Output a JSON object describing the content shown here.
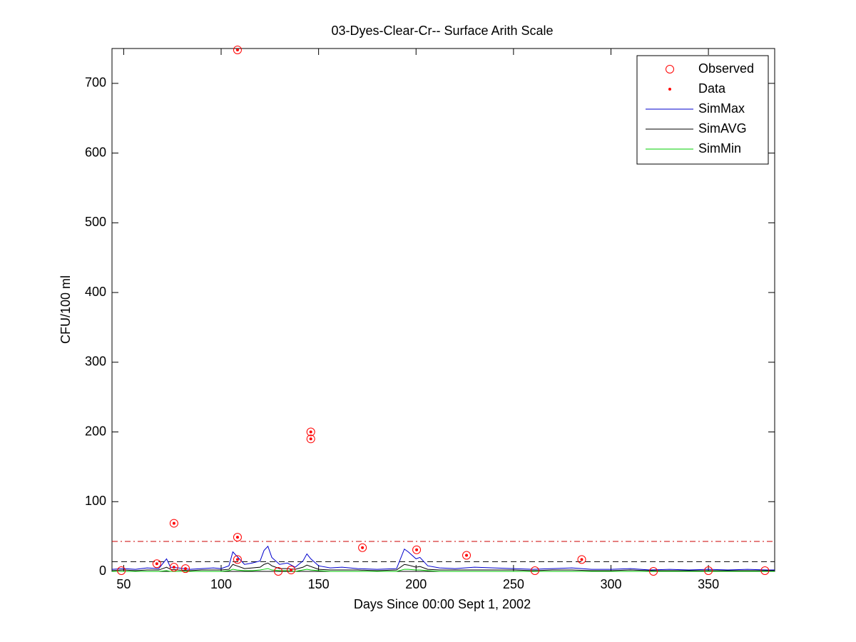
{
  "chart_data": {
    "type": "line",
    "title": "03-Dyes-Clear-Cr-- Surface Arith Scale",
    "xlabel": "Days Since 00:00 Sept 1, 2002",
    "ylabel": "CFU/100 ml",
    "xlim": [
      44,
      384
    ],
    "ylim": [
      0,
      750
    ],
    "xticks": [
      50,
      100,
      150,
      200,
      250,
      300,
      350
    ],
    "yticks": [
      0,
      100,
      200,
      300,
      400,
      500,
      600,
      700
    ],
    "legend": "upper right",
    "series": [
      {
        "name": "Observed",
        "color": "#ff0000",
        "style": "circle",
        "x": [
          48.8,
          67,
          75.8,
          75.8,
          81.7,
          108.4,
          108.4,
          108.4,
          129.3,
          135.9,
          146,
          146,
          172.5,
          200.3,
          225.9,
          261,
          285,
          321.8,
          350,
          379
        ],
        "values": [
          1,
          11,
          69,
          6,
          4,
          748,
          49,
          17,
          0,
          2,
          200,
          190,
          34,
          31,
          23,
          1,
          17,
          0,
          1,
          1
        ]
      },
      {
        "name": "Data",
        "color": "#ff0000",
        "style": "dot",
        "x": [
          67,
          75.8,
          75.8,
          81.7,
          108.4,
          108.4,
          108.4,
          135.9,
          146,
          146,
          172.5,
          200.3,
          225.9,
          285
        ],
        "values": [
          11,
          69,
          6,
          4,
          748,
          49,
          17,
          2,
          200,
          190,
          34,
          31,
          23,
          17
        ]
      },
      {
        "name": "SimMax",
        "color": "#0000cc",
        "style": "line",
        "x": [
          44,
          50,
          56,
          62,
          68,
          72,
          74,
          78,
          84,
          90,
          96,
          100,
          104,
          106,
          108,
          112,
          116,
          120,
          122,
          124,
          126,
          130,
          134,
          138,
          142,
          144,
          146,
          150,
          156,
          162,
          170,
          180,
          190,
          194,
          196,
          200,
          202,
          206,
          212,
          220,
          230,
          240,
          250,
          260,
          270,
          280,
          290,
          300,
          310,
          320,
          330,
          340,
          350,
          360,
          370,
          380,
          384
        ],
        "values": [
          3,
          4,
          3,
          5,
          4,
          18,
          6,
          5,
          3,
          4,
          5,
          4,
          8,
          28,
          22,
          10,
          12,
          15,
          30,
          36,
          20,
          10,
          12,
          6,
          15,
          25,
          18,
          8,
          5,
          6,
          4,
          3,
          4,
          32,
          28,
          18,
          20,
          8,
          5,
          4,
          6,
          5,
          4,
          3,
          4,
          5,
          3,
          3,
          4,
          2,
          3,
          2,
          3,
          2,
          3,
          2,
          2
        ]
      },
      {
        "name": "SimAVG",
        "color": "#000000",
        "style": "line",
        "x": [
          44,
          50,
          56,
          62,
          68,
          72,
          74,
          78,
          84,
          90,
          96,
          100,
          104,
          106,
          108,
          112,
          116,
          120,
          122,
          124,
          126,
          130,
          134,
          138,
          142,
          144,
          146,
          150,
          156,
          162,
          170,
          180,
          190,
          194,
          196,
          200,
          202,
          206,
          212,
          220,
          230,
          240,
          250,
          260,
          270,
          280,
          290,
          300,
          310,
          320,
          330,
          340,
          350,
          360,
          370,
          380,
          384
        ],
        "values": [
          1,
          2,
          1,
          2,
          2,
          6,
          3,
          2,
          1,
          2,
          2,
          2,
          3,
          10,
          8,
          4,
          5,
          6,
          10,
          12,
          8,
          4,
          4,
          3,
          6,
          9,
          7,
          3,
          2,
          2,
          2,
          1,
          2,
          10,
          9,
          6,
          7,
          3,
          2,
          2,
          2,
          2,
          2,
          1,
          2,
          2,
          1,
          1,
          2,
          1,
          1,
          1,
          1,
          1,
          1,
          1,
          1
        ]
      },
      {
        "name": "SimMin",
        "color": "#00cc00",
        "style": "line",
        "x": [
          44,
          50,
          56,
          62,
          68,
          72,
          74,
          78,
          84,
          90,
          96,
          100,
          104,
          106,
          108,
          112,
          116,
          120,
          122,
          124,
          126,
          130,
          134,
          138,
          142,
          144,
          146,
          150,
          156,
          162,
          170,
          180,
          190,
          194,
          196,
          200,
          202,
          206,
          212,
          220,
          230,
          240,
          250,
          260,
          270,
          280,
          290,
          300,
          310,
          320,
          330,
          340,
          350,
          360,
          370,
          380,
          384
        ],
        "values": [
          0,
          0,
          0,
          0,
          0,
          1,
          0,
          0,
          0,
          0,
          0,
          0,
          1,
          3,
          2,
          1,
          1,
          2,
          3,
          4,
          2,
          1,
          1,
          0,
          2,
          3,
          2,
          1,
          0,
          0,
          0,
          0,
          0,
          3,
          3,
          2,
          2,
          1,
          0,
          0,
          0,
          0,
          0,
          0,
          0,
          0,
          0,
          0,
          0,
          0,
          0,
          0,
          0,
          0,
          0,
          0,
          0
        ]
      }
    ],
    "hlines": [
      {
        "value": 43,
        "color": "#cc0000",
        "dash": "dashdot"
      },
      {
        "value": 14,
        "color": "#000000",
        "dash": "dashed"
      }
    ]
  }
}
